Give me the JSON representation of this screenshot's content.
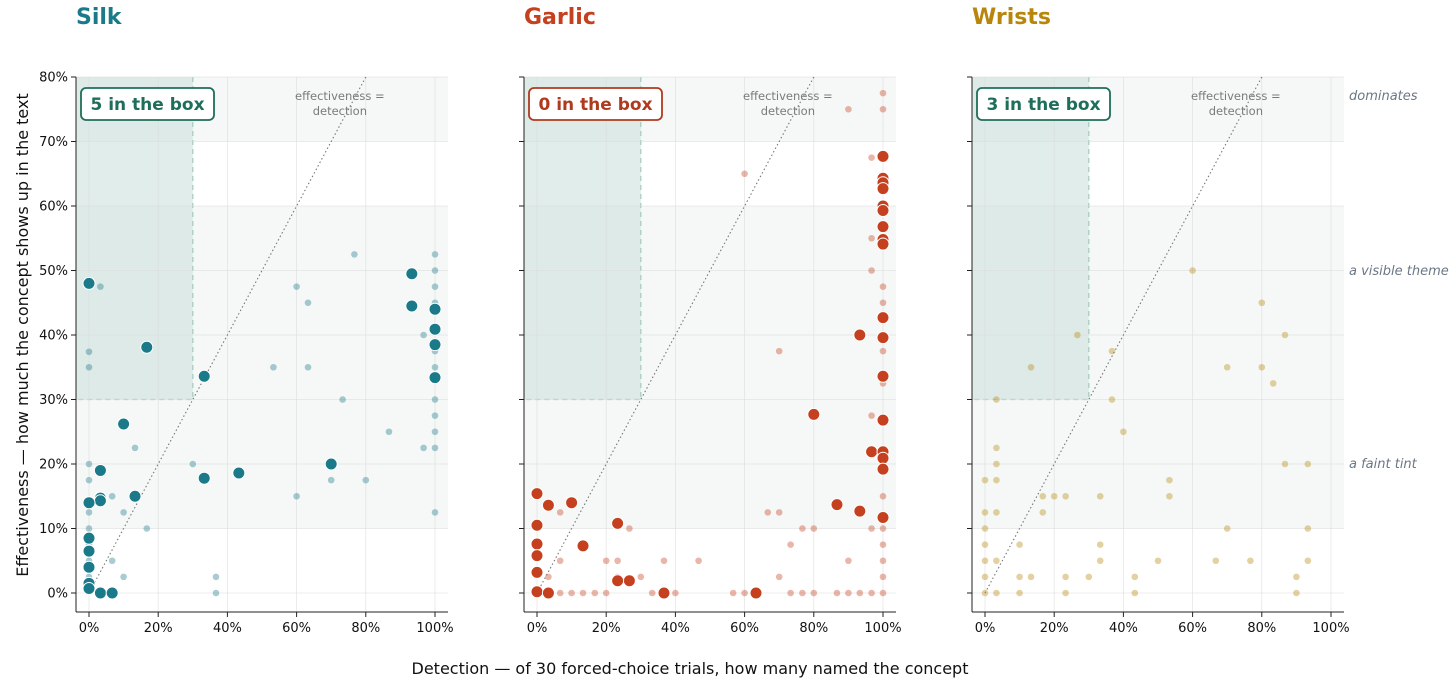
{
  "figure": {
    "xlabel": "Detection — of 30 forced-choice trials, how many named the concept",
    "ylabel": "Effectiveness — how much the concept shows up in the text",
    "band_labels": [
      "dominates",
      "a visible theme",
      "a faint tint"
    ],
    "diagonal_label": [
      "effectiveness =",
      "detection"
    ]
  },
  "chart_data": [
    {
      "type": "scatter",
      "title": "Silk",
      "color": "#1a7a8a",
      "box_label": "5 in the box",
      "box_color": "#1e6e5a",
      "xlim": [
        0,
        1
      ],
      "ylim": [
        0,
        0.8
      ],
      "x_ticks": [
        "0%",
        "20%",
        "40%",
        "60%",
        "80%",
        "100%"
      ],
      "y_ticks": [
        "0%",
        "10%",
        "20%",
        "30%",
        "40%",
        "50%",
        "60%",
        "70%",
        "80%"
      ],
      "grid": true,
      "large_points": [
        [
          0,
          0.48
        ],
        [
          0.167,
          0.381
        ],
        [
          0.333,
          0.336
        ],
        [
          0.1,
          0.262
        ],
        [
          0.933,
          0.495
        ],
        [
          0.933,
          0.445
        ],
        [
          1,
          0.44
        ],
        [
          1,
          0.409
        ],
        [
          1,
          0.385
        ],
        [
          1,
          0.334
        ],
        [
          0.433,
          0.186
        ],
        [
          0.333,
          0.178
        ],
        [
          0.7,
          0.2
        ],
        [
          0.033,
          0.19
        ],
        [
          0.133,
          0.15
        ],
        [
          0.033,
          0.147
        ],
        [
          0.033,
          0.143
        ],
        [
          0,
          0.14
        ],
        [
          0,
          0.085
        ],
        [
          0,
          0.065
        ],
        [
          0,
          0.04
        ],
        [
          0,
          0.015
        ],
        [
          0,
          0.007
        ],
        [
          0.033,
          0
        ],
        [
          0.067,
          0
        ]
      ],
      "small_points": [
        [
          0.033,
          0.475
        ],
        [
          0,
          0.374
        ],
        [
          0,
          0.35
        ],
        [
          0.133,
          0.225
        ],
        [
          0.767,
          0.525
        ],
        [
          0.6,
          0.475
        ],
        [
          0.633,
          0.45
        ],
        [
          0.533,
          0.35
        ],
        [
          0.633,
          0.35
        ],
        [
          0.733,
          0.3
        ],
        [
          0.867,
          0.25
        ],
        [
          0.3,
          0.2
        ],
        [
          0.6,
          0.15
        ],
        [
          0.7,
          0.175
        ],
        [
          0.8,
          0.175
        ],
        [
          0.967,
          0.4
        ],
        [
          0.967,
          0.225
        ],
        [
          1,
          0.525
        ],
        [
          1,
          0.5
        ],
        [
          1,
          0.475
        ],
        [
          1,
          0.45
        ],
        [
          1,
          0.375
        ],
        [
          1,
          0.35
        ],
        [
          1,
          0.3
        ],
        [
          1,
          0.275
        ],
        [
          1,
          0.25
        ],
        [
          1,
          0.225
        ],
        [
          1,
          0.125
        ],
        [
          0.167,
          0.1
        ],
        [
          0.1,
          0.125
        ],
        [
          0.067,
          0.15
        ],
        [
          0.067,
          0.05
        ],
        [
          0.1,
          0.025
        ],
        [
          0.367,
          0.025
        ],
        [
          0.367,
          0
        ],
        [
          0,
          0.2
        ],
        [
          0,
          0.175
        ],
        [
          0,
          0.125
        ],
        [
          0,
          0.1
        ],
        [
          0,
          0.075
        ],
        [
          0,
          0.05
        ],
        [
          0,
          0.025
        ]
      ]
    },
    {
      "type": "scatter",
      "title": "Garlic",
      "color": "#c4401e",
      "box_label": "0 in the box",
      "box_color": "#b03a1e",
      "xlim": [
        0,
        1
      ],
      "ylim": [
        0,
        0.8
      ],
      "x_ticks": [
        "0%",
        "20%",
        "40%",
        "60%",
        "80%",
        "100%"
      ],
      "y_ticks": [
        "0%",
        "10%",
        "20%",
        "30%",
        "40%",
        "50%",
        "60%",
        "70%",
        "80%"
      ],
      "grid": true,
      "large_points": [
        [
          1,
          0.677
        ],
        [
          1,
          0.643
        ],
        [
          1,
          0.636
        ],
        [
          1,
          0.627
        ],
        [
          1,
          0.6
        ],
        [
          1,
          0.593
        ],
        [
          1,
          0.568
        ],
        [
          1,
          0.548
        ],
        [
          1,
          0.541
        ],
        [
          1,
          0.427
        ],
        [
          1,
          0.396
        ],
        [
          0.933,
          0.4
        ],
        [
          1,
          0.336
        ],
        [
          0.8,
          0.277
        ],
        [
          1,
          0.268
        ],
        [
          0.967,
          0.219
        ],
        [
          1,
          0.219
        ],
        [
          1,
          0.209
        ],
        [
          1,
          0.192
        ],
        [
          0.867,
          0.137
        ],
        [
          0.933,
          0.127
        ],
        [
          1,
          0.117
        ],
        [
          0,
          0.154
        ],
        [
          0.033,
          0.136
        ],
        [
          0.1,
          0.14
        ],
        [
          0.233,
          0.108
        ],
        [
          0.133,
          0.073
        ],
        [
          0,
          0.105
        ],
        [
          0,
          0.076
        ],
        [
          0,
          0.058
        ],
        [
          0,
          0.032
        ],
        [
          0,
          0.002
        ],
        [
          0.033,
          0
        ],
        [
          0.267,
          0.019
        ],
        [
          0.233,
          0.019
        ],
        [
          0.367,
          0
        ],
        [
          0.633,
          0
        ]
      ],
      "small_points": [
        [
          1,
          0.775
        ],
        [
          1,
          0.75
        ],
        [
          0.9,
          0.75
        ],
        [
          0.967,
          0.675
        ],
        [
          0.6,
          0.65
        ],
        [
          0.967,
          0.55
        ],
        [
          0.967,
          0.5
        ],
        [
          1,
          0.475
        ],
        [
          1,
          0.45
        ],
        [
          1,
          0.375
        ],
        [
          1,
          0.325
        ],
        [
          0.7,
          0.375
        ],
        [
          0.967,
          0.275
        ],
        [
          1,
          0.15
        ],
        [
          0.667,
          0.125
        ],
        [
          0.7,
          0.125
        ],
        [
          0.767,
          0.1
        ],
        [
          0.8,
          0.1
        ],
        [
          0.733,
          0.075
        ],
        [
          0.7,
          0.025
        ],
        [
          0.9,
          0.05
        ],
        [
          0.967,
          0.1
        ],
        [
          1,
          0.1
        ],
        [
          1,
          0.075
        ],
        [
          1,
          0.05
        ],
        [
          1,
          0.025
        ],
        [
          1,
          0
        ],
        [
          0.967,
          0
        ],
        [
          0.933,
          0
        ],
        [
          0.9,
          0
        ],
        [
          0.867,
          0
        ],
        [
          0.8,
          0
        ],
        [
          0.767,
          0
        ],
        [
          0.733,
          0
        ],
        [
          0.6,
          0
        ],
        [
          0.567,
          0
        ],
        [
          0.4,
          0
        ],
        [
          0.333,
          0
        ],
        [
          0.267,
          0.1
        ],
        [
          0.2,
          0.05
        ],
        [
          0.233,
          0.05
        ],
        [
          0.367,
          0.05
        ],
        [
          0.467,
          0.05
        ],
        [
          0.067,
          0.125
        ],
        [
          0.033,
          0.025
        ],
        [
          0.067,
          0.05
        ],
        [
          0.067,
          0
        ],
        [
          0.133,
          0
        ],
        [
          0.167,
          0
        ],
        [
          0.2,
          0
        ],
        [
          0.233,
          0.025
        ],
        [
          0.3,
          0.025
        ],
        [
          0.1,
          0
        ]
      ]
    },
    {
      "type": "scatter",
      "title": "Wrists",
      "color": "#b8860b",
      "box_label": "3 in the box",
      "box_color": "#1e6e5a",
      "xlim": [
        0,
        1
      ],
      "ylim": [
        0,
        0.8
      ],
      "x_ticks": [
        "0%",
        "20%",
        "40%",
        "60%",
        "80%",
        "100%"
      ],
      "y_ticks": [
        "0%",
        "10%",
        "20%",
        "30%",
        "40%",
        "50%",
        "60%",
        "70%",
        "80%"
      ],
      "grid": true,
      "large_points": [],
      "small_points": [
        [
          0.6,
          0.5
        ],
        [
          0.8,
          0.45
        ],
        [
          0.867,
          0.4
        ],
        [
          0.267,
          0.4
        ],
        [
          0.367,
          0.375
        ],
        [
          0.133,
          0.35
        ],
        [
          0.7,
          0.35
        ],
        [
          0.8,
          0.35
        ],
        [
          0.833,
          0.325
        ],
        [
          0.033,
          0.3
        ],
        [
          0.367,
          0.3
        ],
        [
          0.4,
          0.25
        ],
        [
          0.033,
          0.225
        ],
        [
          0.033,
          0.2
        ],
        [
          0.867,
          0.2
        ],
        [
          0.933,
          0.2
        ],
        [
          0,
          0.175
        ],
        [
          0.033,
          0.175
        ],
        [
          0.533,
          0.175
        ],
        [
          0.167,
          0.15
        ],
        [
          0.2,
          0.15
        ],
        [
          0.233,
          0.15
        ],
        [
          0.333,
          0.15
        ],
        [
          0.533,
          0.15
        ],
        [
          0,
          0.125
        ],
        [
          0.033,
          0.125
        ],
        [
          0.167,
          0.125
        ],
        [
          0,
          0.1
        ],
        [
          0.7,
          0.1
        ],
        [
          0.933,
          0.1
        ],
        [
          0.1,
          0.075
        ],
        [
          0,
          0.075
        ],
        [
          0.333,
          0.075
        ],
        [
          0,
          0.05
        ],
        [
          0.033,
          0.05
        ],
        [
          0.333,
          0.05
        ],
        [
          0.5,
          0.05
        ],
        [
          0.667,
          0.05
        ],
        [
          0.767,
          0.05
        ],
        [
          0.933,
          0.05
        ],
        [
          0,
          0.025
        ],
        [
          0.1,
          0.025
        ],
        [
          0.133,
          0.025
        ],
        [
          0.233,
          0.025
        ],
        [
          0.3,
          0.025
        ],
        [
          0.433,
          0.025
        ],
        [
          0.9,
          0.025
        ],
        [
          0,
          0
        ],
        [
          0.033,
          0
        ],
        [
          0.1,
          0
        ],
        [
          0.233,
          0
        ],
        [
          0.433,
          0
        ],
        [
          0.9,
          0
        ]
      ]
    }
  ]
}
